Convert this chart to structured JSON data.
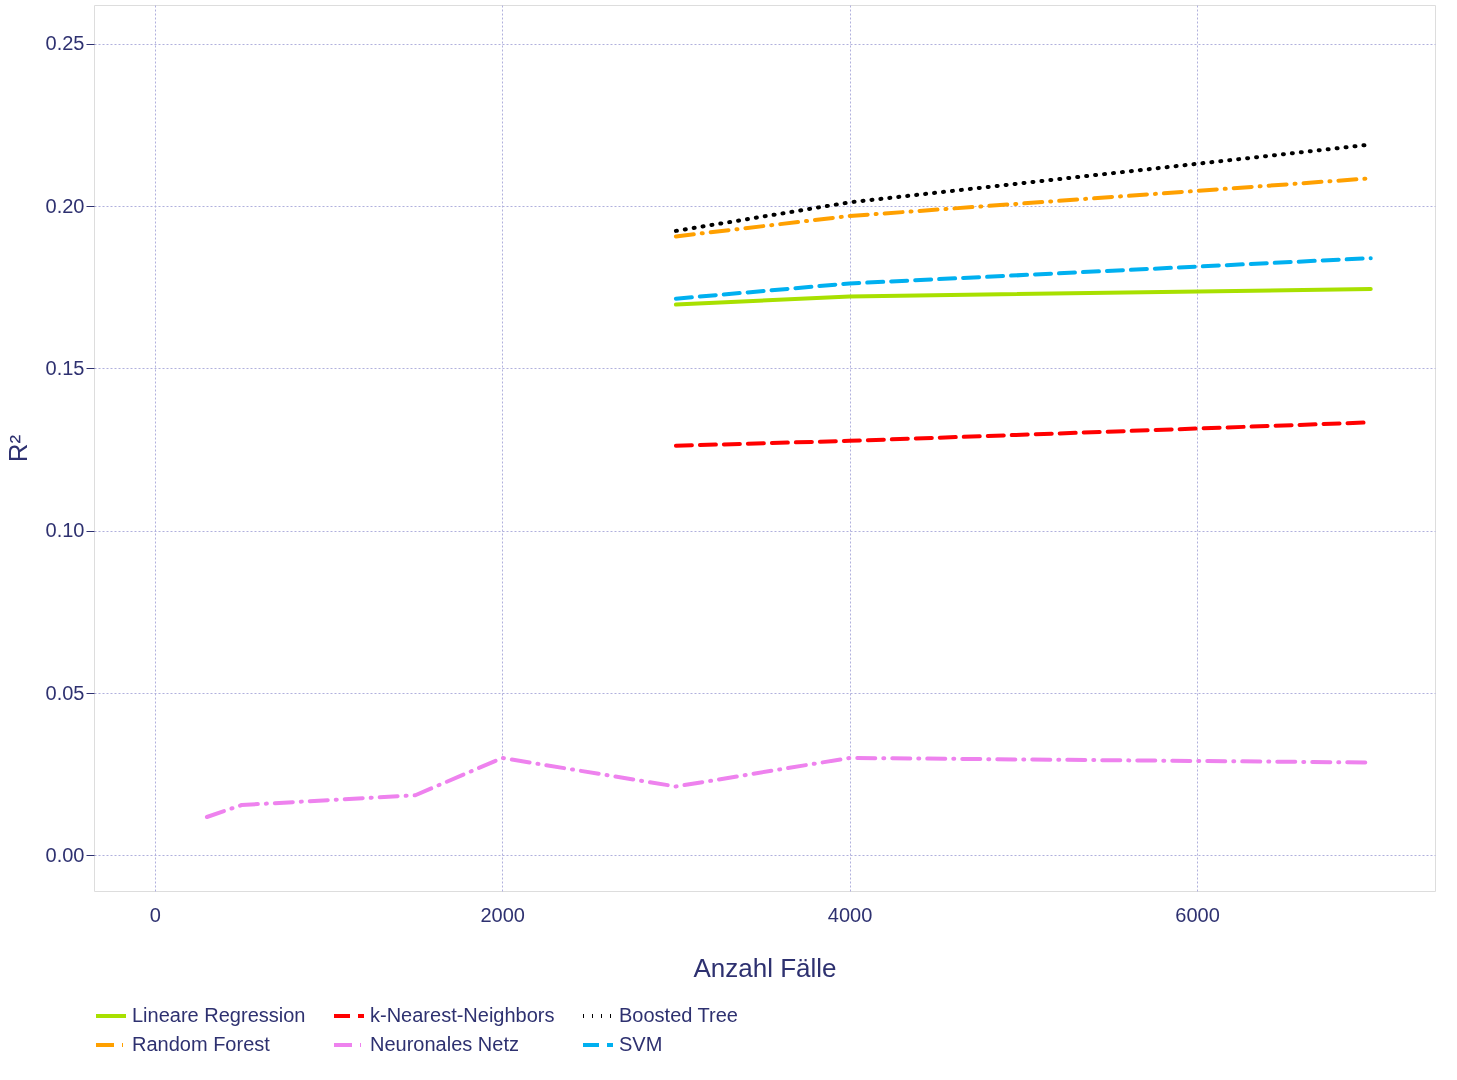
{
  "chart_data": {
    "type": "line",
    "xlabel": "Anzahl Fälle",
    "ylabel": "R²",
    "xlim": [
      -350,
      7370
    ],
    "ylim": [
      -0.011,
      0.262
    ],
    "xticks": [
      0,
      {
        "value": 2000,
        "label": "2000"
      },
      {
        "value": 4000,
        "label": "4000"
      },
      {
        "value": 6000,
        "label": "6000"
      }
    ],
    "yticks": [
      {
        "value": 0,
        "label": "0.00"
      },
      0.05,
      {
        "value": 0.1,
        "label": "0.10"
      },
      0.15,
      {
        "value": 0.2,
        "label": "0.20"
      },
      0.25
    ],
    "grid": true,
    "legend": "bottom",
    "marker": "none",
    "series": [
      {
        "name": "Lineare Regression",
        "color": "#a8e000",
        "line_style": "solid",
        "x": [
          3000,
          4000,
          7000
        ],
        "values": [
          0.1697,
          0.1722,
          0.1745
        ]
      },
      {
        "name": "k-Nearest-Neighbors",
        "color": "#ff0000",
        "line_style": "dashed",
        "x": [
          3000,
          4000,
          7000
        ],
        "values": [
          0.1262,
          0.1277,
          0.1334
        ]
      },
      {
        "name": "Boosted Tree",
        "color": "#000000",
        "line_style": "dotted",
        "x": [
          3000,
          4000,
          7000
        ],
        "values": [
          0.1924,
          0.2012,
          0.219
        ]
      },
      {
        "name": "Random Forest",
        "color": "#ffa000",
        "line_style": "dashdot",
        "x": [
          3000,
          4000,
          7000
        ],
        "values": [
          0.1907,
          0.197,
          0.2086
        ]
      },
      {
        "name": "Neuronales Netz",
        "color": "#ee82ee",
        "line_style": "dashdot",
        "x": [
          300,
          500,
          1500,
          2000,
          3000,
          4000,
          7000
        ],
        "values": [
          0.0118,
          0.0155,
          0.0185,
          0.03,
          0.0212,
          0.03,
          0.0286
        ]
      },
      {
        "name": "SVM",
        "color": "#00b0f0",
        "line_style": "dashed",
        "x": [
          3000,
          4000,
          7000
        ],
        "values": [
          0.1715,
          0.1762,
          0.184
        ]
      }
    ]
  }
}
